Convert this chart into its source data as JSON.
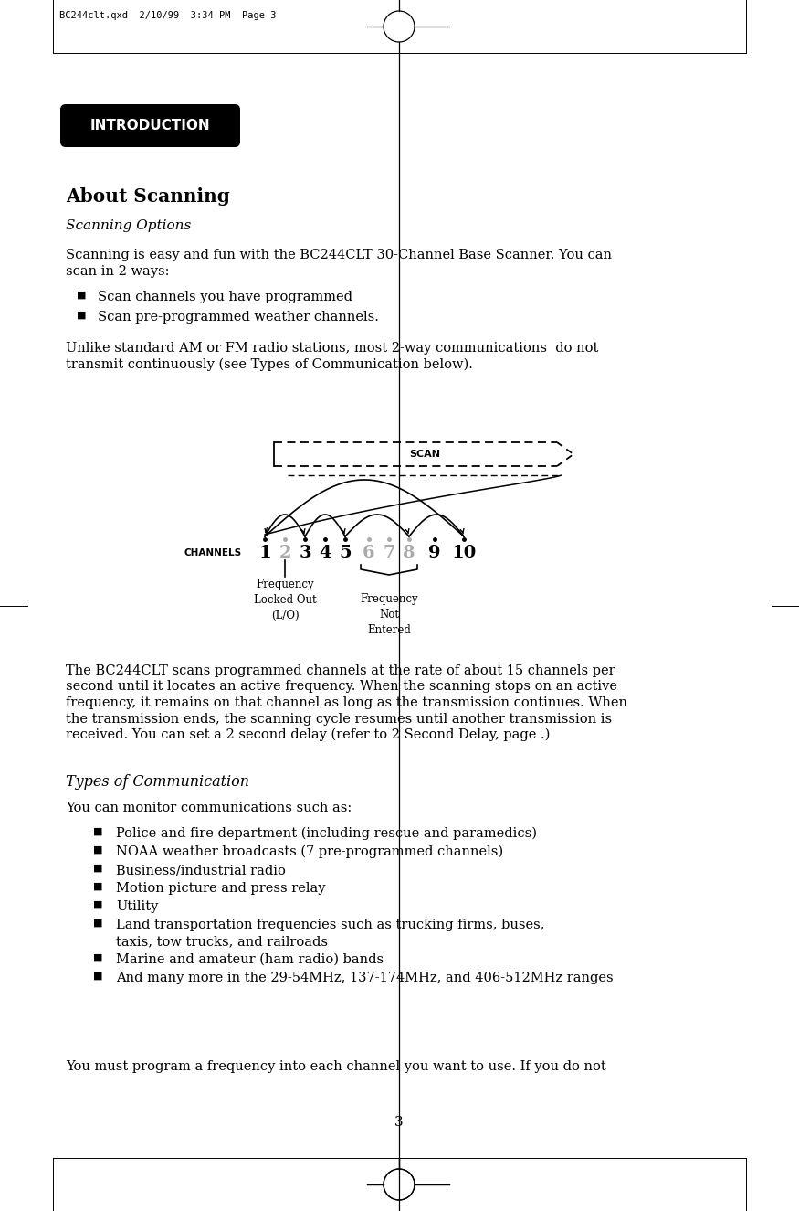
{
  "bg_color": "#ffffff",
  "header_text": "BC244clt.qxd  2/10/99  3:34 PM  Page 3",
  "intro_label": "INTRODUCTION",
  "title": "About Scanning",
  "subtitle": "Scanning Options",
  "para1_l1": "Scanning is easy and fun with the BC244CLT 30-Channel Base Scanner. You can",
  "para1_l2": "scan in 2 ways:",
  "bullets1": [
    "Scan channels you have programmed",
    "Scan pre-programmed weather channels."
  ],
  "para2_l1": "Unlike standard AM or FM radio stations, most 2-way communications  do not",
  "para2_l2": "transmit continuously (see Types of Communication below).",
  "para3_lines": [
    "The BC244CLT scans programmed channels at the rate of about 15 channels per",
    "second until it locates an active frequency. When the scanning stops on an active",
    "frequency, it remains on that channel as long as the transmission continues. When",
    "the transmission ends, the scanning cycle resumes until another transmission is",
    "received. You can set a 2 second delay (refer to 2 Second Delay, page .)"
  ],
  "section2_title": "Types of Communication",
  "para4": "You can monitor communications such as:",
  "bullets2_lines": [
    [
      "Police and fire department (including rescue and paramedics)"
    ],
    [
      "NOAA weather broadcasts (7 pre-programmed channels)"
    ],
    [
      "Business/industrial radio"
    ],
    [
      "Motion picture and press relay"
    ],
    [
      "Utility"
    ],
    [
      "Land transportation frequencies such as trucking firms, buses,",
      "taxis, tow trucks, and railroads"
    ],
    [
      "Marine and amateur (ham radio) bands"
    ],
    [
      "And many more in the 29-54MHz, 137-174MHz, and 406-512MHz ranges"
    ]
  ],
  "para5": "You must program a frequency into each channel you want to use. If you do not",
  "page_num": "3",
  "channels": [
    "1",
    "2",
    "3",
    "4",
    "5",
    "6",
    "7",
    "8",
    "9",
    "10"
  ],
  "channel_gray_idx": [
    1,
    5,
    6,
    7
  ],
  "channels_label": "CHANNELS",
  "scan_label": "SCAN",
  "freq_lo_label": "Frequency\nLocked Out\n(L/O)",
  "freq_ne_label": "Frequency\nNot\nEntered"
}
